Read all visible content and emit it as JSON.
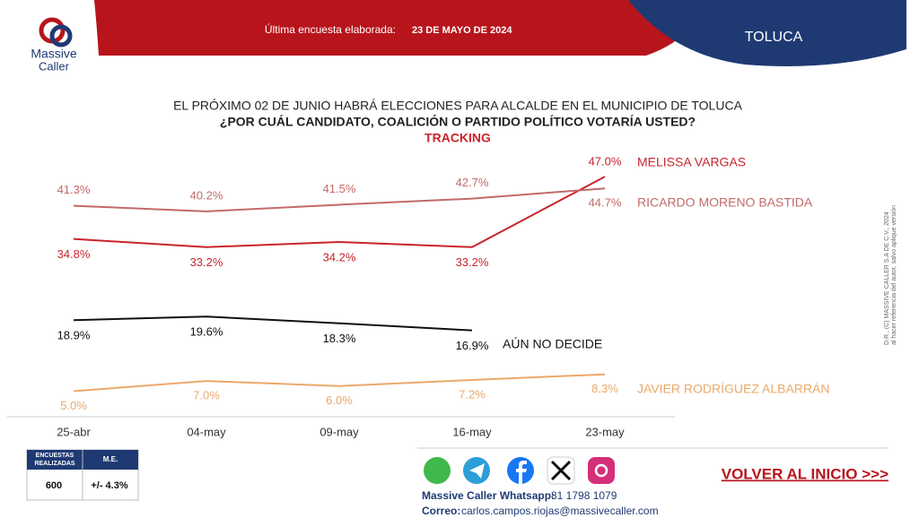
{
  "header": {
    "logo_line1": "Massive",
    "logo_line2": "Caller",
    "survey_label": "Última encuesta elaborada:",
    "survey_date": "23 DE MAYO DE 2024",
    "place": "TOLUCA"
  },
  "chart_data": {
    "type": "line",
    "title": "EL PRÓXIMO 02 DE JUNIO HABRÁ ELECCIONES PARA ALCALDE EN EL MUNICIPIO DE TOLUCA",
    "subtitle": "¿POR CUÁL CANDIDATO, COALICIÓN O PARTIDO POLÍTICO VOTARÍA USTED?",
    "tag": "TRACKING",
    "categories": [
      "25-abr",
      "04-may",
      "09-may",
      "16-may",
      "23-may"
    ],
    "ylim": [
      0,
      50
    ],
    "series": [
      {
        "name": "MELISSA VARGAS",
        "color": "#c8242b",
        "values": [
          34.8,
          33.2,
          34.2,
          33.2,
          47.0
        ],
        "value_labels": [
          "34.8%",
          "33.2%",
          "34.2%",
          "33.2%",
          "47.0%"
        ]
      },
      {
        "name": "RICARDO MORENO BASTIDA",
        "color": "#c26a6a",
        "values": [
          41.3,
          40.2,
          41.5,
          42.7,
          44.7
        ],
        "value_labels": [
          "41.3%",
          "40.2%",
          "41.5%",
          "42.7%",
          "44.7%"
        ]
      },
      {
        "name": "AÚN NO DECIDE",
        "color": "#111111",
        "values": [
          18.9,
          19.6,
          18.3,
          16.9,
          null
        ],
        "value_labels": [
          "18.9%",
          "19.6%",
          "18.3%",
          "16.9%",
          null
        ]
      },
      {
        "name": "JAVIER RODRÍGUEZ ALBARRÁN",
        "color": "#eba86a",
        "values": [
          5.0,
          7.0,
          6.0,
          7.2,
          8.3
        ],
        "value_labels": [
          "5.0%",
          "7.0%",
          "6.0%",
          "7.2%",
          "8.3%"
        ]
      }
    ]
  },
  "table": {
    "headers": [
      "ENCUESTAS REALIZADAS",
      "M.E."
    ],
    "row": [
      "600",
      "+/- 4.3%"
    ]
  },
  "footer": {
    "whatsapp_label": "Massive Caller Whatsapp:",
    "whatsapp": "81 1798 1079",
    "email_label": "Correo:",
    "email": "carlos.campos.riojas@massivecaller.com",
    "back": "VOLVER AL INICIO >>>"
  },
  "copyright": [
    "D.R., (C) MASSIVE CALLER S.A DE C.V., 2024",
    "al hacer referencia del autor, salvo aplique versión"
  ]
}
